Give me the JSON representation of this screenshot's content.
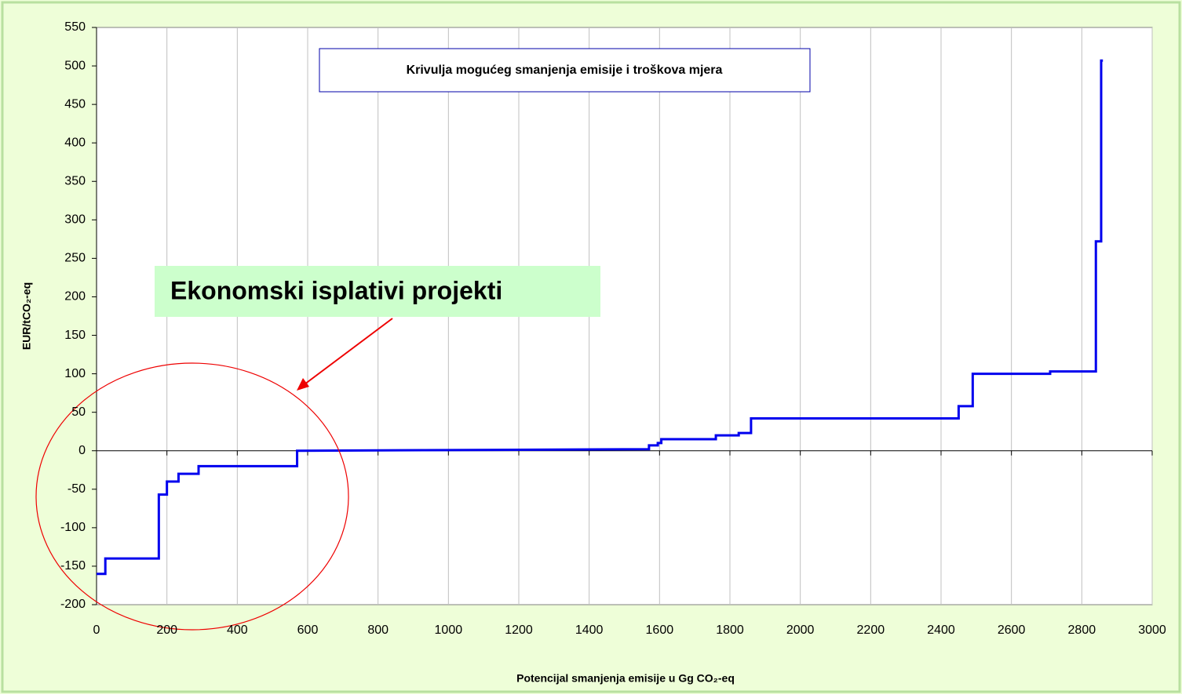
{
  "chart_data": {
    "type": "line",
    "title": "Krivulja mogućeg smanjenja emisije i troškova mjera",
    "annotation": "Ekonomski isplativi projekti",
    "x_label": "Potencijal smanjenja emisije u Gg CO₂-eq",
    "y_label": "EUR/tCO₂-eq",
    "xlim": [
      0,
      3000
    ],
    "ylim": [
      -200,
      550
    ],
    "xticks": [
      0,
      200,
      400,
      600,
      800,
      1000,
      1200,
      1400,
      1600,
      1800,
      2000,
      2200,
      2400,
      2600,
      2800,
      3000
    ],
    "yticks": [
      -200,
      -150,
      -100,
      -50,
      0,
      50,
      100,
      150,
      200,
      250,
      300,
      350,
      400,
      450,
      500,
      550
    ],
    "grid": true,
    "series": [
      {
        "color": "#0000ee",
        "x": [
          0,
          25,
          25,
          177,
          177,
          200,
          200,
          233,
          233,
          290,
          290,
          570,
          570,
          1570,
          1570,
          1595,
          1595,
          1605,
          1605,
          1760,
          1760,
          1825,
          1825,
          1860,
          1860,
          2450,
          2450,
          2490,
          2490,
          2710,
          2710,
          2840,
          2840,
          2855,
          2855,
          2860
        ],
        "values": [
          -160,
          -160,
          -140,
          -140,
          -57,
          -57,
          -40,
          -40,
          -30,
          -30,
          -20,
          -20,
          0,
          2,
          7,
          7,
          10,
          10,
          15,
          15,
          20,
          20,
          23,
          23,
          42,
          42,
          58,
          58,
          100,
          100,
          103,
          103,
          272,
          272,
          507,
          507
        ]
      }
    ]
  }
}
